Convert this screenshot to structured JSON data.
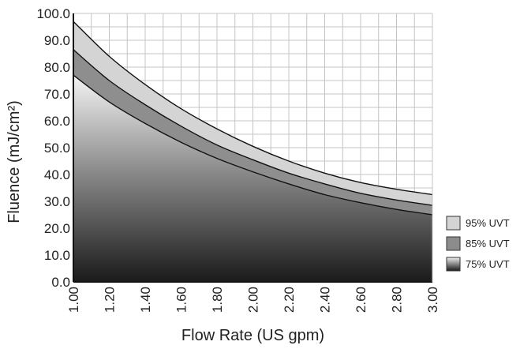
{
  "chart_data": {
    "type": "area",
    "title": "",
    "xlabel": "Flow Rate (US gpm)",
    "ylabel": "Fluence (mJ/cm²)",
    "xlim": [
      1.0,
      3.0
    ],
    "ylim": [
      0.0,
      100.0
    ],
    "grid": true,
    "legend_position": "right",
    "x": [
      1.0,
      1.2,
      1.4,
      1.6,
      1.8,
      2.0,
      2.2,
      2.4,
      2.6,
      2.8,
      3.0
    ],
    "x_tick_labels": [
      "1.00",
      "1.20",
      "1.40",
      "1.60",
      "1.80",
      "2.00",
      "2.20",
      "2.40",
      "2.60",
      "2.80",
      "3.00"
    ],
    "y_tick_labels": [
      "0.0",
      "10.0",
      "20.0",
      "30.0",
      "40.0",
      "50.0",
      "60.0",
      "70.0",
      "80.0",
      "90.0",
      "100.0"
    ],
    "series": [
      {
        "name": "95% UVT",
        "values": [
          97.0,
          84.0,
          73.5,
          64.5,
          57.0,
          50.5,
          45.0,
          40.5,
          37.0,
          34.5,
          32.5
        ],
        "color": "#d4d4d4"
      },
      {
        "name": "85% UVT",
        "values": [
          86.5,
          75.0,
          66.0,
          58.0,
          51.0,
          45.5,
          40.5,
          36.5,
          33.0,
          30.5,
          28.5
        ],
        "color": "#8c8c8c"
      },
      {
        "name": "75% UVT",
        "values": [
          77.0,
          67.0,
          59.0,
          52.0,
          46.0,
          41.0,
          36.5,
          32.5,
          29.5,
          27.0,
          25.0
        ],
        "color": "#2a2a2a"
      }
    ]
  }
}
